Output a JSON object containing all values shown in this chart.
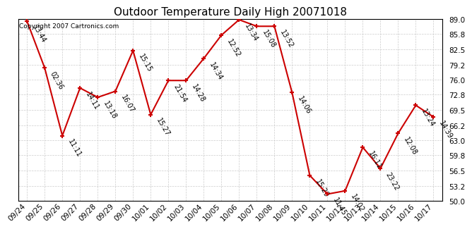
{
  "title": "Outdoor Temperature Daily High 20071018",
  "copyright": "Copyright 2007 Cartronics.com",
  "background_color": "#ffffff",
  "grid_color": "#cccccc",
  "line_color": "#cc0000",
  "marker_color": "#cc0000",
  "title_fontsize": 11,
  "tick_fontsize": 7.5,
  "annotation_fontsize": 7,
  "ylim": [
    50.0,
    89.0
  ],
  "yticks": [
    50.0,
    53.2,
    56.5,
    59.8,
    63.0,
    66.2,
    69.5,
    72.8,
    76.0,
    79.2,
    82.5,
    85.8,
    89.0
  ],
  "dates": [
    "09/24",
    "09/25",
    "09/26",
    "09/27",
    "09/28",
    "09/29",
    "09/30",
    "10/01",
    "10/02",
    "10/03",
    "10/04",
    "10/05",
    "10/06",
    "10/07",
    "10/08",
    "10/09",
    "10/10",
    "10/11",
    "10/12",
    "10/13",
    "10/14",
    "10/15",
    "10/16",
    "10/17"
  ],
  "values": [
    88.5,
    78.5,
    64.0,
    74.2,
    72.2,
    73.5,
    82.2,
    68.5,
    75.8,
    75.8,
    80.5,
    85.5,
    88.8,
    87.4,
    87.4,
    73.2,
    55.5,
    51.5,
    52.2,
    61.5,
    57.0,
    64.5,
    70.5,
    68.0
  ],
  "labels": [
    "13:44",
    "02:36",
    "11:11",
    "14:11",
    "13:18",
    "16:07",
    "15:15",
    "15:27",
    "21:54",
    "14:28",
    "14:34",
    "12:52",
    "13:34",
    "15:08",
    "13:52",
    "14:06",
    "15:29",
    "11:45",
    "14:02",
    "16:11",
    "23:22",
    "12:08",
    "13:24",
    "14:39"
  ]
}
